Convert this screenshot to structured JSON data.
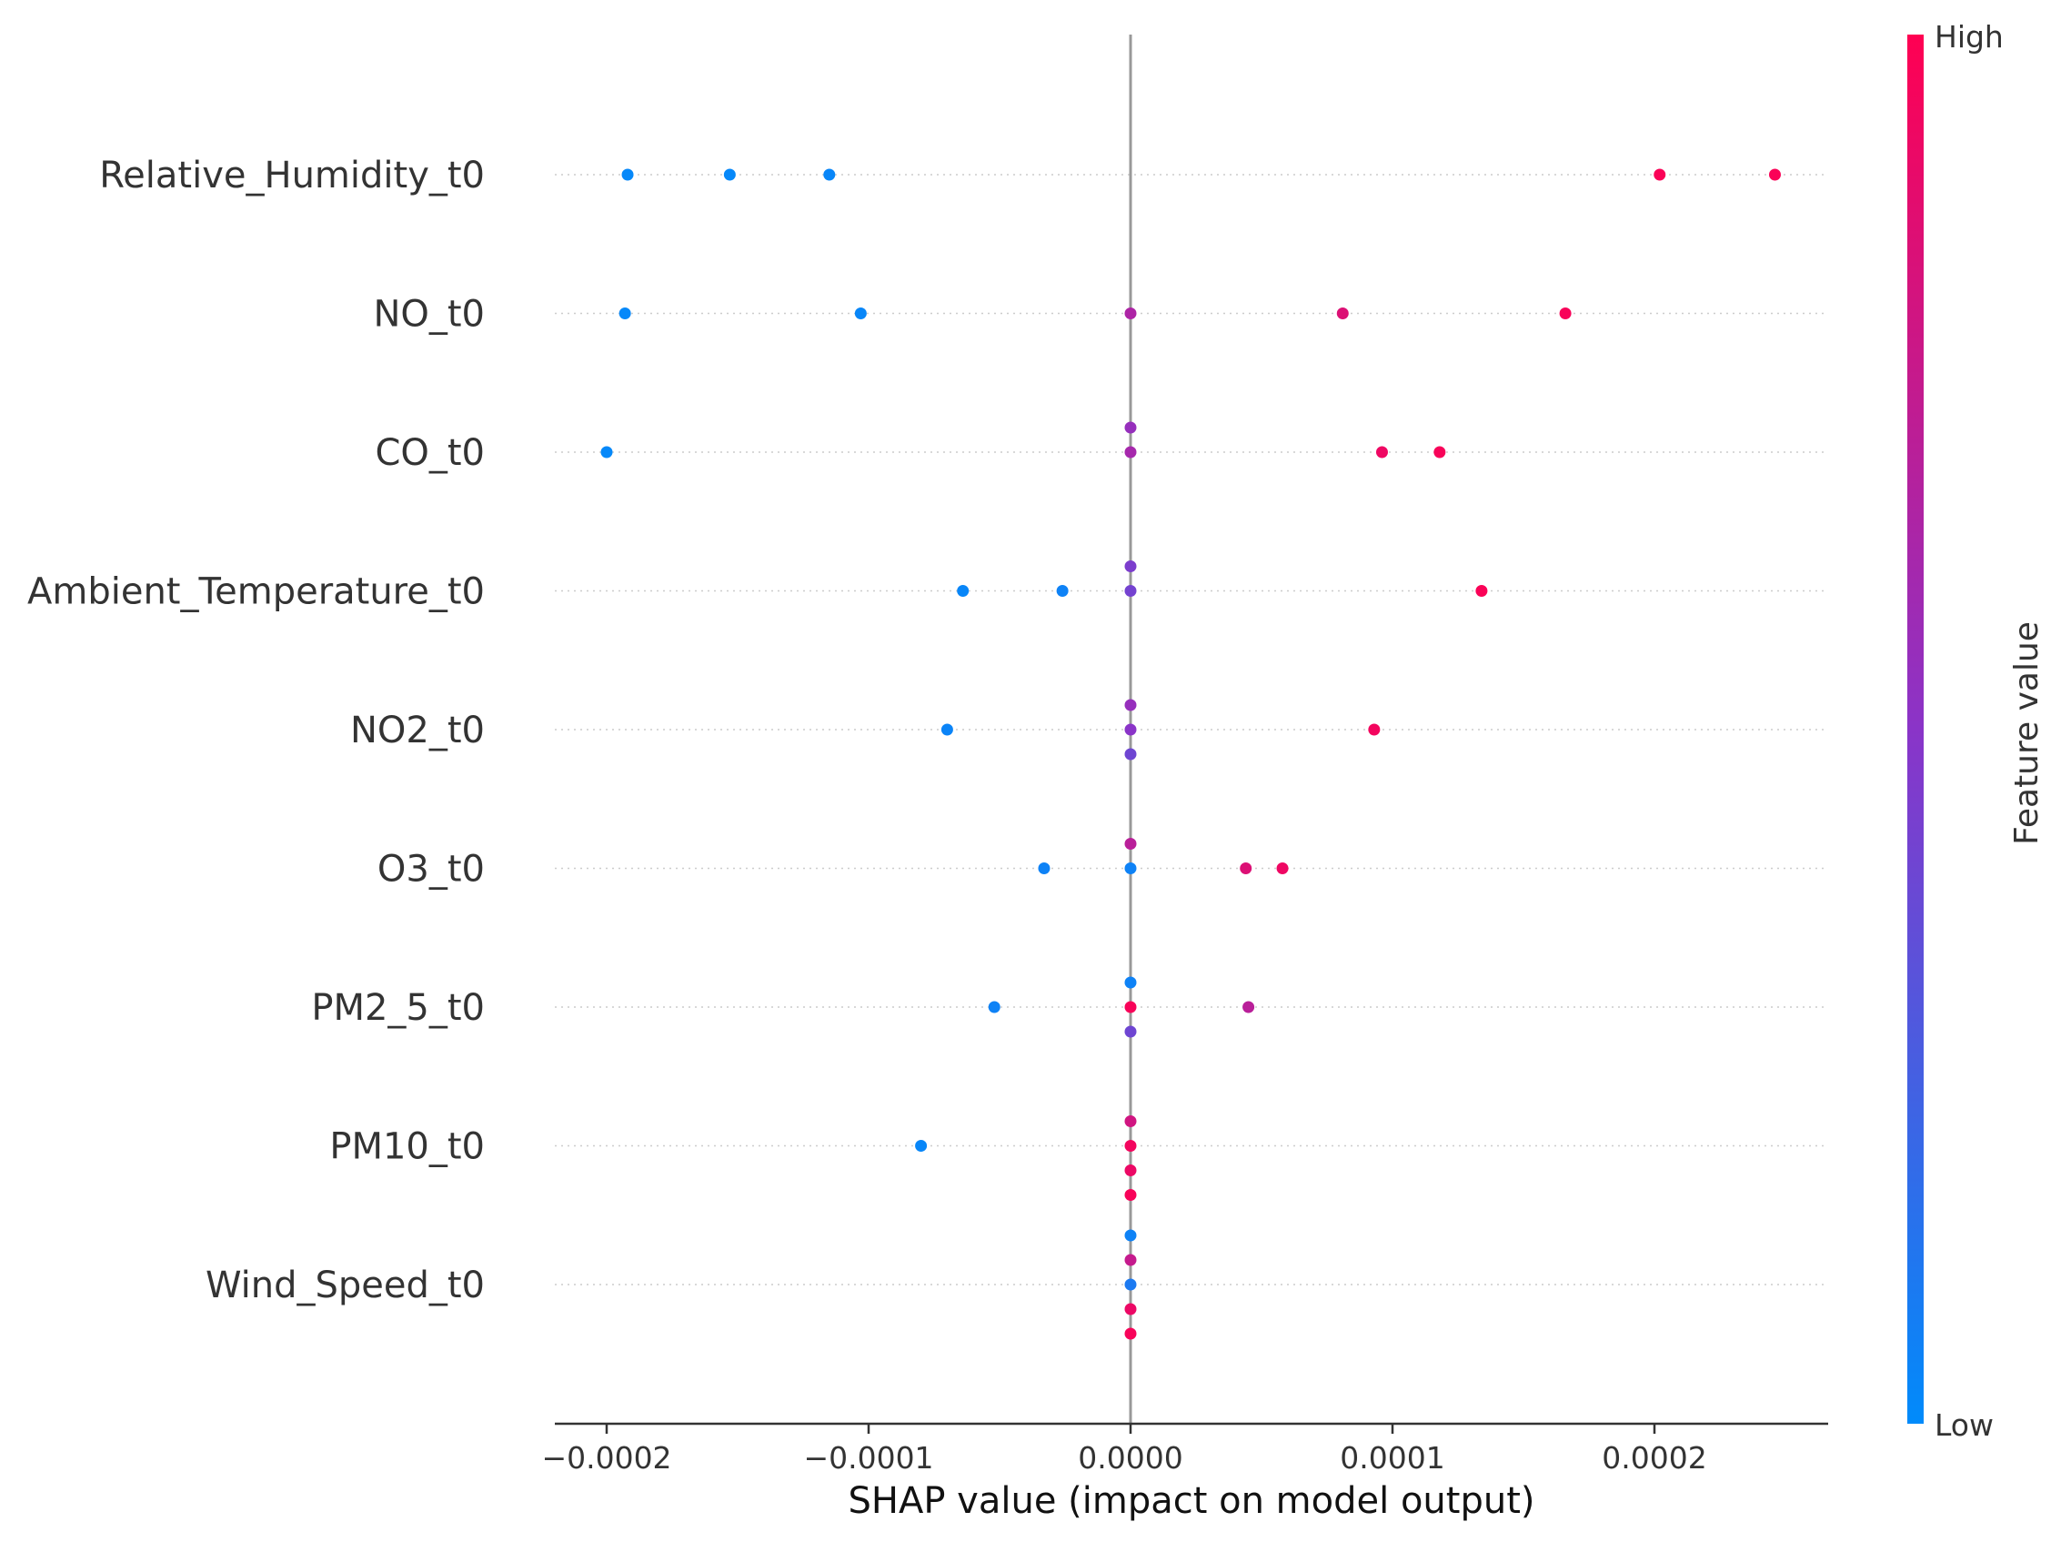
{
  "chart_data": {
    "type": "scatter",
    "subtype": "shap-beeswarm",
    "title": "",
    "xlabel": "SHAP value (impact on model output)",
    "ylabel": "",
    "xlim": [
      -0.000222,
      0.000268
    ],
    "x_ticks": [
      -0.0002,
      -0.0001,
      0.0,
      0.0001,
      0.0002
    ],
    "x_tick_labels": [
      "−0.0002",
      "−0.0001",
      "0.0000",
      "0.0001",
      "0.0002"
    ],
    "features": [
      "Relative_Humidity_t0",
      "NO_t0",
      "CO_t0",
      "Ambient_Temperature_t0",
      "NO2_t0",
      "O3_t0",
      "PM2_5_t0",
      "PM10_t0",
      "Wind_Speed_t0"
    ],
    "points": [
      [
        {
          "x": -0.000192,
          "v": 0.02,
          "offset": 0
        },
        {
          "x": -0.000153,
          "v": 0.02,
          "offset": 0
        },
        {
          "x": -0.000115,
          "v": 0.03,
          "offset": 0
        },
        {
          "x": 0.000202,
          "v": 0.98,
          "offset": 0
        },
        {
          "x": 0.000246,
          "v": 0.98,
          "offset": 0
        }
      ],
      [
        {
          "x": -0.000193,
          "v": 0.02,
          "offset": 0
        },
        {
          "x": -0.000103,
          "v": 0.03,
          "offset": 0
        },
        {
          "x": 0.0,
          "v": 0.65,
          "offset": 0
        },
        {
          "x": 8.1e-05,
          "v": 0.85,
          "offset": 0
        },
        {
          "x": 0.000166,
          "v": 0.97,
          "offset": 0
        }
      ],
      [
        {
          "x": 0.0,
          "v": 0.55,
          "offset": -1
        },
        {
          "x": -0.0002,
          "v": 0.02,
          "offset": 0
        },
        {
          "x": 0.0,
          "v": 0.62,
          "offset": 0
        },
        {
          "x": 9.6e-05,
          "v": 0.93,
          "offset": 0
        },
        {
          "x": 0.000118,
          "v": 0.97,
          "offset": 0
        }
      ],
      [
        {
          "x": 0.0,
          "v": 0.45,
          "offset": -1
        },
        {
          "x": -6.4e-05,
          "v": 0.03,
          "offset": 0
        },
        {
          "x": -2.6e-05,
          "v": 0.05,
          "offset": 0
        },
        {
          "x": 0.0,
          "v": 0.42,
          "offset": 0
        },
        {
          "x": 0.000134,
          "v": 0.98,
          "offset": 0
        }
      ],
      [
        {
          "x": 0.0,
          "v": 0.55,
          "offset": -1
        },
        {
          "x": -7e-05,
          "v": 0.04,
          "offset": 0
        },
        {
          "x": 0.0,
          "v": 0.5,
          "offset": 0
        },
        {
          "x": 9.3e-05,
          "v": 0.95,
          "offset": 0
        },
        {
          "x": 0.0,
          "v": 0.4,
          "offset": 1
        }
      ],
      [
        {
          "x": 0.0,
          "v": 0.7,
          "offset": -1
        },
        {
          "x": -3.3e-05,
          "v": 0.05,
          "offset": 0
        },
        {
          "x": 0.0,
          "v": 0.05,
          "offset": 0
        },
        {
          "x": 4.4e-05,
          "v": 0.85,
          "offset": 0
        },
        {
          "x": 5.8e-05,
          "v": 0.93,
          "offset": 0
        }
      ],
      [
        {
          "x": 0.0,
          "v": 0.05,
          "offset": -1
        },
        {
          "x": -5.2e-05,
          "v": 0.05,
          "offset": 0
        },
        {
          "x": 0.0,
          "v": 0.97,
          "offset": 0
        },
        {
          "x": 4.5e-05,
          "v": 0.7,
          "offset": 0
        },
        {
          "x": 0.0,
          "v": 0.4,
          "offset": 1
        }
      ],
      [
        {
          "x": 0.0,
          "v": 0.8,
          "offset": -1
        },
        {
          "x": -8e-05,
          "v": 0.03,
          "offset": 0
        },
        {
          "x": 0.0,
          "v": 0.95,
          "offset": 0
        },
        {
          "x": 0.0,
          "v": 0.92,
          "offset": 1
        },
        {
          "x": 0.0,
          "v": 0.97,
          "offset": 2
        }
      ],
      [
        {
          "x": 0.0,
          "v": 0.05,
          "offset": -2
        },
        {
          "x": 0.0,
          "v": 0.75,
          "offset": -1
        },
        {
          "x": 0.0,
          "v": 0.1,
          "offset": 0
        },
        {
          "x": 0.0,
          "v": 0.92,
          "offset": 1
        },
        {
          "x": 0.0,
          "v": 0.97,
          "offset": 2
        }
      ]
    ],
    "colorbar": {
      "label": "Feature value",
      "high_label": "High",
      "low_label": "Low",
      "low_color": "#008bfb",
      "mid_color": "#8a34c8",
      "high_color": "#ff0052"
    },
    "grid": false,
    "legend": "right"
  }
}
